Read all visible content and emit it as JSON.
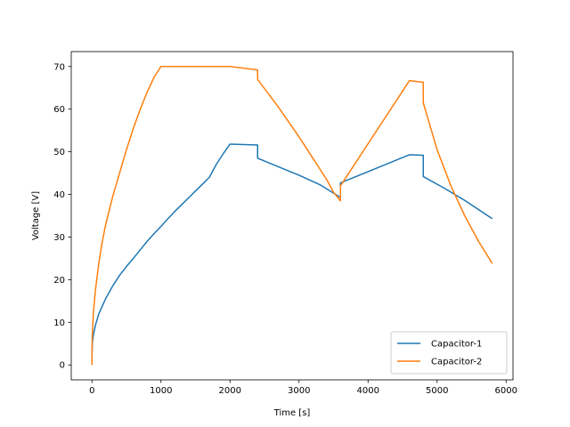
{
  "chart_data": {
    "type": "line",
    "title": "",
    "xlabel": "Time [s]",
    "ylabel": "Voltage [V]",
    "xlim": [
      -300,
      6100
    ],
    "ylim": [
      -3.5,
      73.5
    ],
    "xticks": [
      0,
      1000,
      2000,
      3000,
      4000,
      5000,
      6000
    ],
    "yticks": [
      0,
      10,
      20,
      30,
      40,
      50,
      60,
      70
    ],
    "grid": false,
    "legend_position": "lower-right",
    "series": [
      {
        "name": "Capacitor-1",
        "color": "#1f77b4",
        "points": [
          [
            0,
            0
          ],
          [
            1,
            3
          ],
          [
            5,
            5
          ],
          [
            20,
            7
          ],
          [
            50,
            9.3
          ],
          [
            100,
            12
          ],
          [
            200,
            15.6
          ],
          [
            300,
            18.5
          ],
          [
            400,
            21
          ],
          [
            500,
            23.1
          ],
          [
            600,
            25
          ],
          [
            700,
            27
          ],
          [
            800,
            29
          ],
          [
            900,
            30.8
          ],
          [
            1000,
            32.5
          ],
          [
            1100,
            34.3
          ],
          [
            1200,
            36
          ],
          [
            1300,
            37.6
          ],
          [
            1400,
            39.2
          ],
          [
            1500,
            40.8
          ],
          [
            1600,
            42.4
          ],
          [
            1700,
            44
          ],
          [
            1800,
            47
          ],
          [
            1900,
            49.5
          ],
          [
            2000,
            51.8
          ],
          [
            2400,
            51.6
          ],
          [
            2400,
            48.5
          ],
          [
            2700,
            46.5
          ],
          [
            3000,
            44.5
          ],
          [
            3300,
            42.3
          ],
          [
            3600,
            39.3
          ],
          [
            3600,
            42.7
          ],
          [
            4100,
            46
          ],
          [
            4600,
            49.3
          ],
          [
            4800,
            49.2
          ],
          [
            4800,
            44.2
          ],
          [
            5100,
            41.5
          ],
          [
            5400,
            38.6
          ],
          [
            5800,
            34.3
          ]
        ]
      },
      {
        "name": "Capacitor-2",
        "color": "#ff7f0e",
        "points": [
          [
            0,
            0
          ],
          [
            1,
            3.5
          ],
          [
            5,
            7
          ],
          [
            20,
            12
          ],
          [
            50,
            17.5
          ],
          [
            100,
            24
          ],
          [
            150,
            29
          ],
          [
            200,
            33
          ],
          [
            300,
            39.5
          ],
          [
            400,
            45
          ],
          [
            500,
            50.5
          ],
          [
            600,
            55.5
          ],
          [
            700,
            60
          ],
          [
            800,
            64
          ],
          [
            900,
            67.5
          ],
          [
            1000,
            70
          ],
          [
            2000,
            70
          ],
          [
            2400,
            69.2
          ],
          [
            2400,
            67
          ],
          [
            2700,
            60.5
          ],
          [
            3000,
            53.5
          ],
          [
            3200,
            48.5
          ],
          [
            3400,
            43.5
          ],
          [
            3500,
            40.5
          ],
          [
            3600,
            38.5
          ],
          [
            3600,
            42
          ],
          [
            4600,
            66.7
          ],
          [
            4800,
            66.3
          ],
          [
            4800,
            61.5
          ],
          [
            5000,
            50.5
          ],
          [
            5200,
            42
          ],
          [
            5400,
            35
          ],
          [
            5600,
            29
          ],
          [
            5800,
            23.8
          ]
        ]
      }
    ]
  }
}
